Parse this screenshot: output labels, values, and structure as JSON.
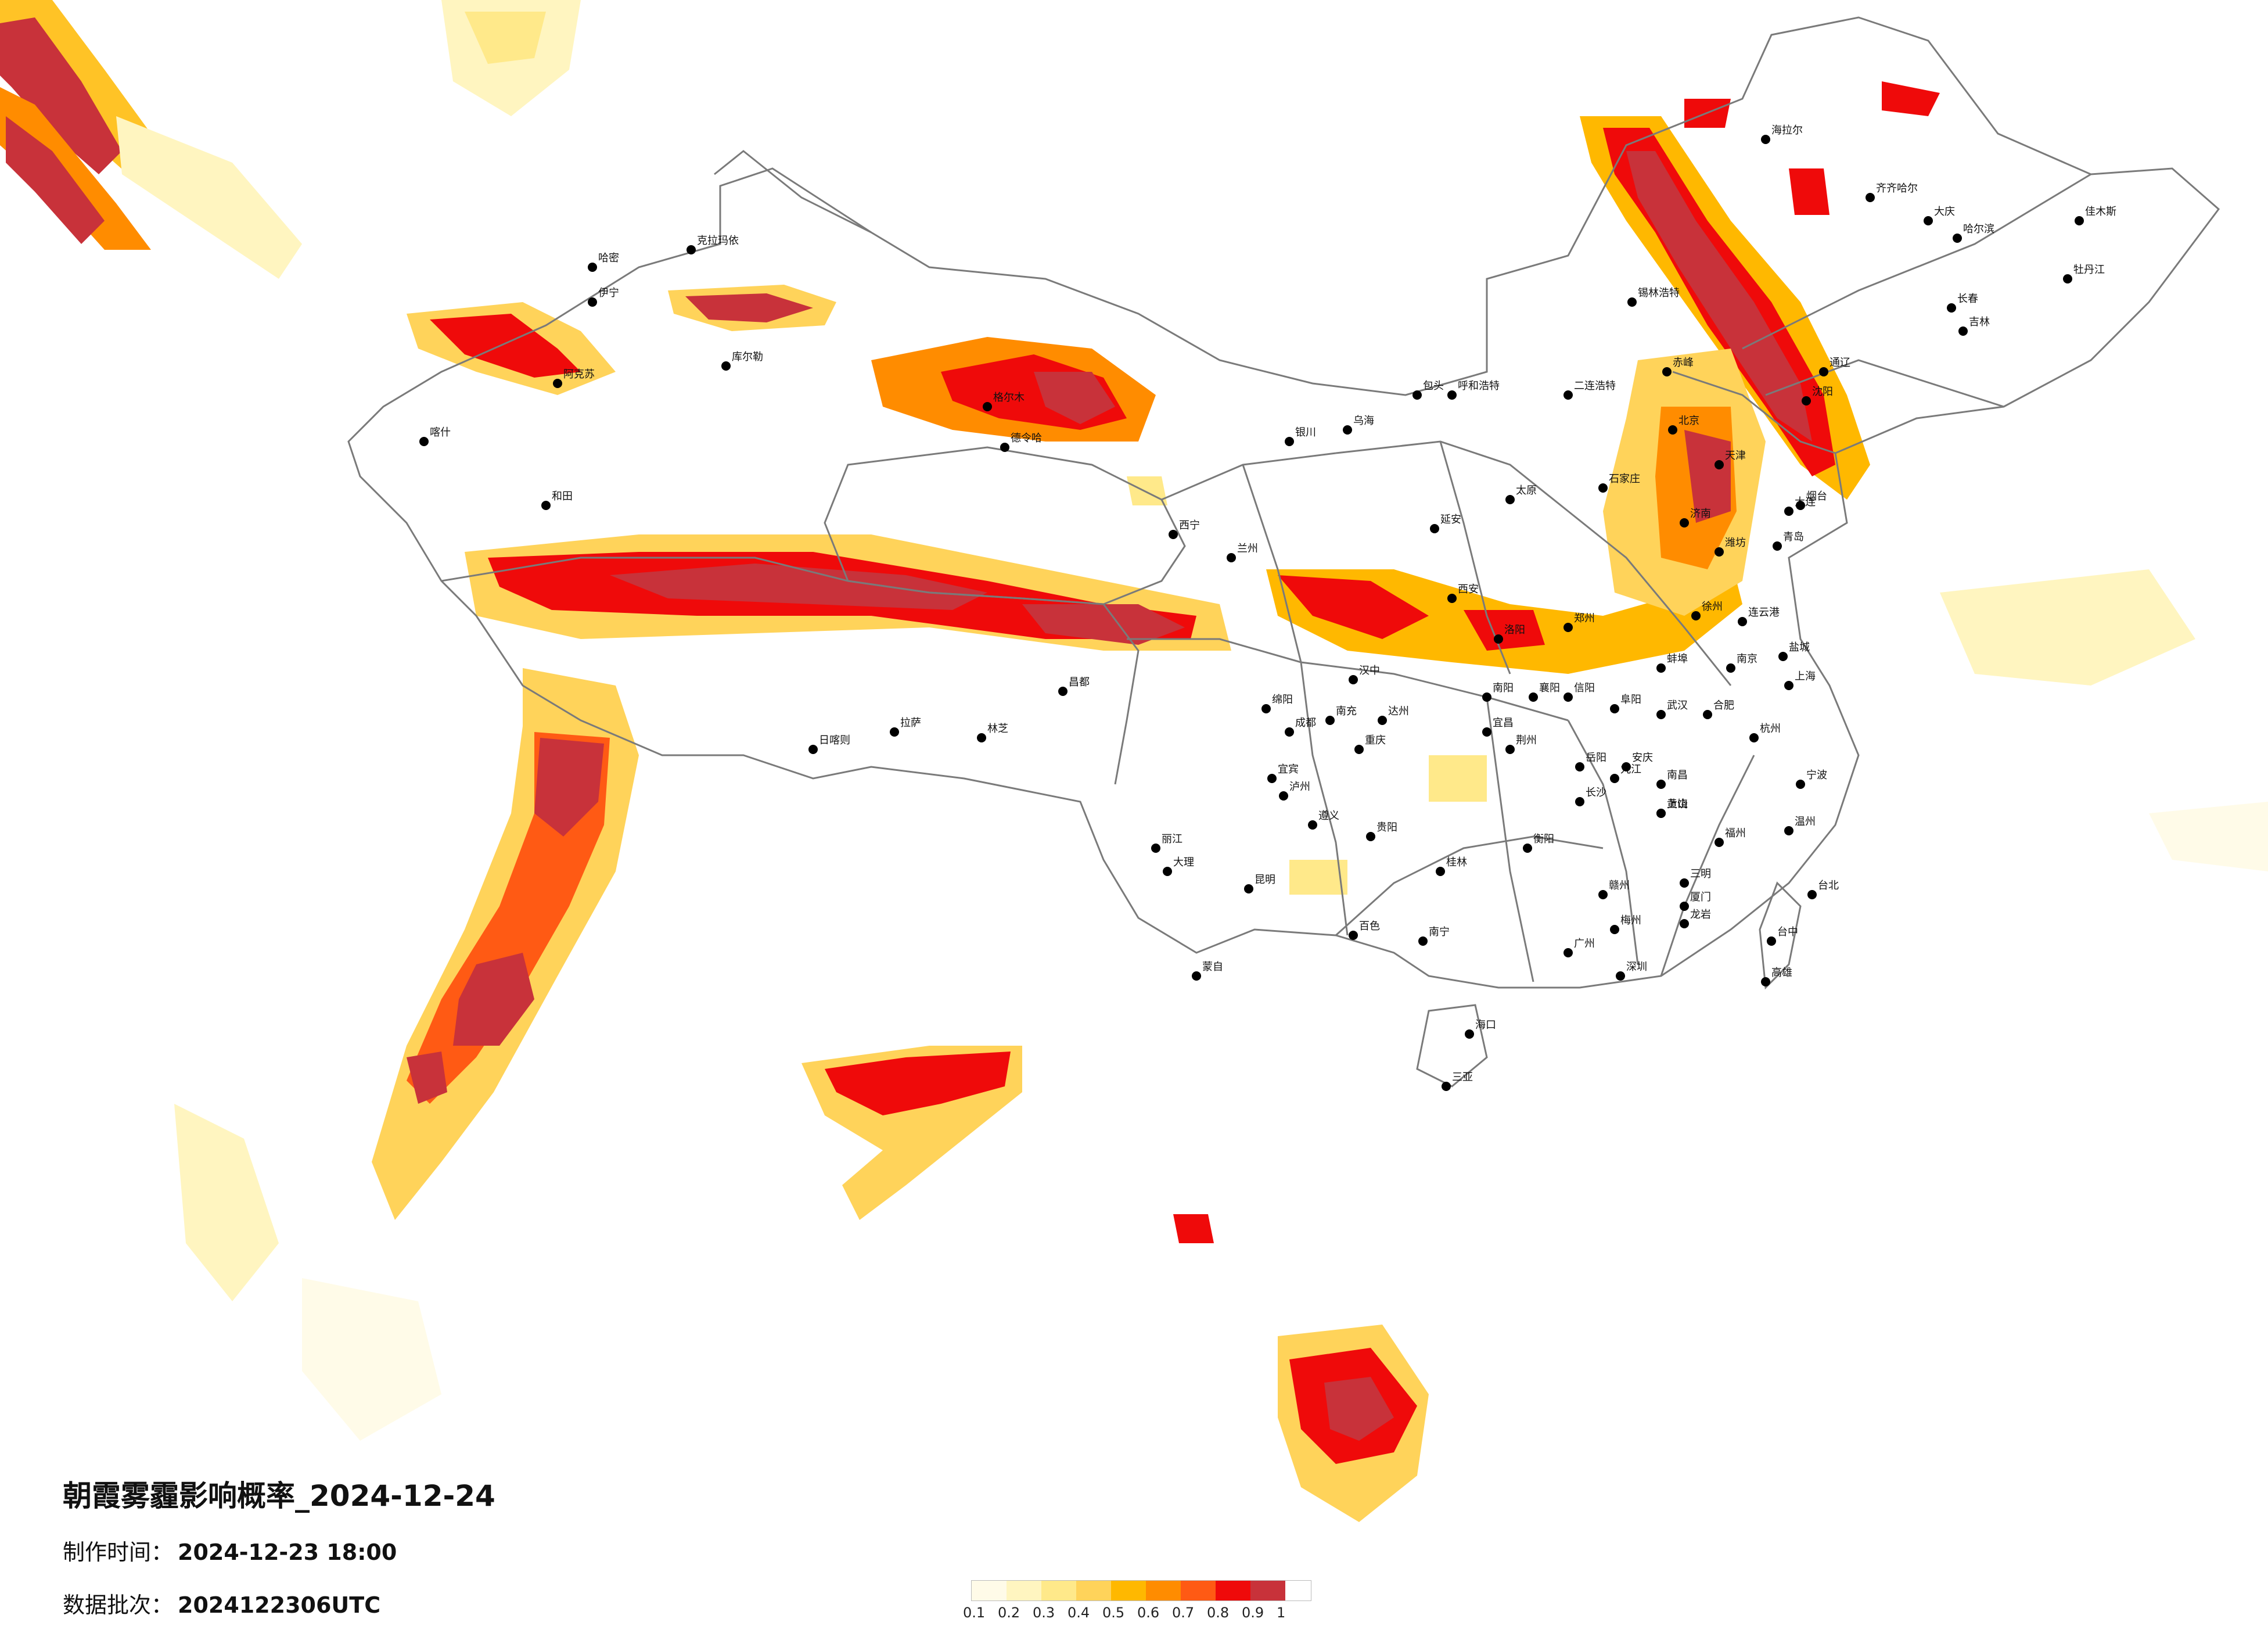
{
  "title": "朝霞雾霾影响概率_2024-12-24",
  "meta": {
    "made_label": "制作时间：",
    "made_value": "2024-12-23 18:00",
    "batch_label": "数据批次：",
    "batch_value": "2024122306UTC"
  },
  "legend": {
    "ticks": [
      "0.1",
      "0.2",
      "0.3",
      "0.4",
      "0.5",
      "0.6",
      "0.7",
      "0.8",
      "0.9",
      "1"
    ],
    "colors": [
      "#fffbe8",
      "#fff5c0",
      "#ffe98a",
      "#ffd35a",
      "#ffb800",
      "#ff8c00",
      "#ff5a14",
      "#ef0a0a",
      "#c8323a"
    ]
  },
  "map": {
    "border_color": "#7a7a7a",
    "city_dot_color": "#000000",
    "cities": [
      "哈密",
      "喀什",
      "和田",
      "克拉玛依",
      "伊宁",
      "库尔勒",
      "阿克苏",
      "格尔木",
      "德令哈",
      "拉萨",
      "日喀则",
      "林芝",
      "昌都",
      "西宁",
      "兰州",
      "银川",
      "呼和浩特",
      "包头",
      "乌海",
      "二连浩特",
      "锡林浩特",
      "赤峰",
      "通辽",
      "海拉尔",
      "齐齐哈尔",
      "大庆",
      "哈尔滨",
      "佳木斯",
      "牡丹江",
      "长春",
      "吉林",
      "沈阳",
      "大连",
      "北京",
      "天津",
      "石家庄",
      "太原",
      "郑州",
      "济南",
      "青岛",
      "西安",
      "延安",
      "汉中",
      "成都",
      "重庆",
      "贵阳",
      "昆明",
      "南宁",
      "桂林",
      "广州",
      "深圳",
      "海口",
      "三亚",
      "长沙",
      "武汉",
      "南昌",
      "合肥",
      "南京",
      "上海",
      "杭州",
      "福州",
      "厦门",
      "台北",
      "台中",
      "高雄",
      "丽江",
      "大理",
      "蒙自",
      "百色",
      "遵义",
      "绵阳",
      "宜宾",
      "泸州",
      "南充",
      "达州",
      "襄阳",
      "宜昌",
      "荆州",
      "岳阳",
      "衡阳",
      "赣州",
      "九江",
      "温州",
      "宁波",
      "徐州",
      "连云港",
      "盐城",
      "烟台",
      "潍坊",
      "洛阳",
      "南阳",
      "信阳",
      "阜阳",
      "蚌埠",
      "安庆",
      "黄山",
      "上饶",
      "三明",
      "龙岩",
      "梅州"
    ]
  }
}
